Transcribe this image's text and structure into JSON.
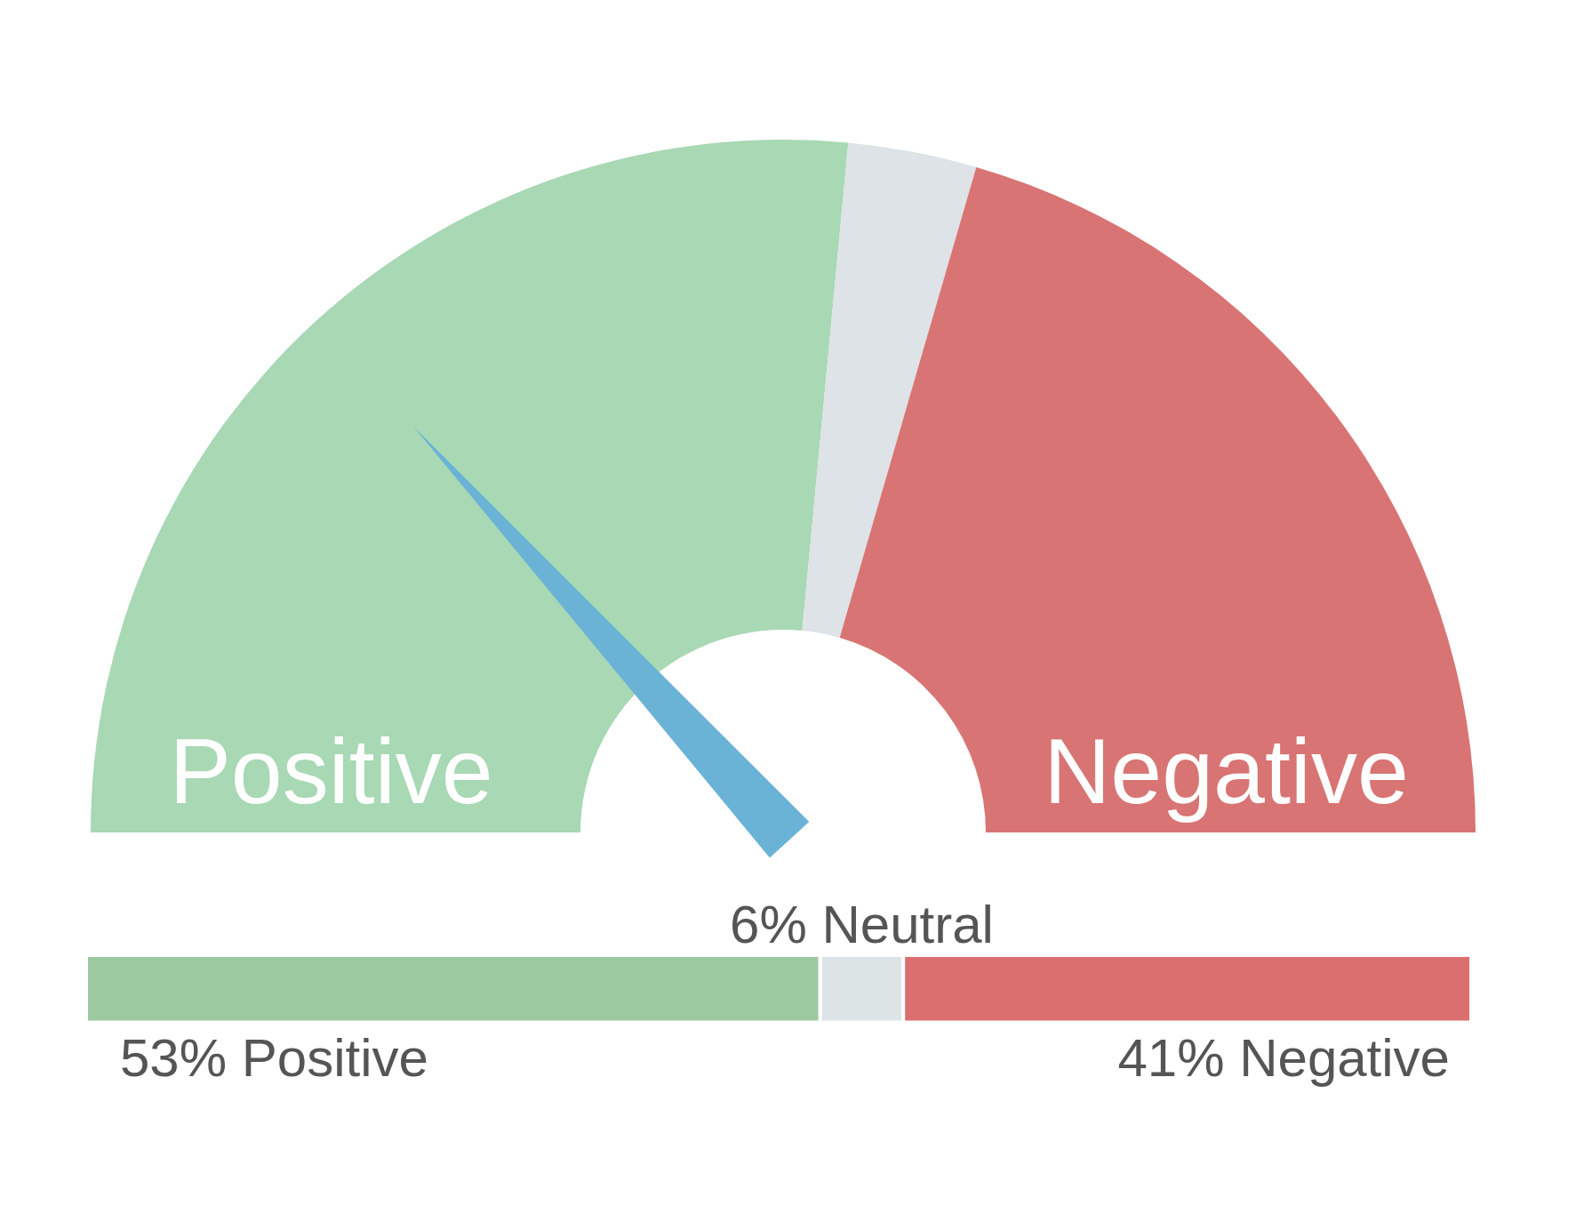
{
  "chart_data": [
    {
      "type": "donut",
      "categories": [
        "Positive",
        null,
        "Negative"
      ],
      "values": [
        53,
        6,
        41
      ],
      "colors": [
        "#a8d8b4",
        "#dde3e6",
        "#d97474"
      ],
      "needle": "Positive"
    },
    {
      "type": "bar",
      "orientation": "horizontal",
      "stacked": true,
      "categories": [
        null
      ],
      "xlim": [
        0,
        100
      ],
      "tick_labels": false,
      "series": [
        {
          "color": "#9cc99f",
          "values": [
            53
          ],
          "value_labels": [
            "53% Positive"
          ]
        },
        {
          "color": "#dde4e6",
          "values": [
            6
          ],
          "value_labels": [
            "6% Neutral"
          ]
        },
        {
          "color": "#db6e6e",
          "values": [
            41
          ],
          "value_labels": [
            "41% Negative"
          ]
        }
      ]
    }
  ]
}
